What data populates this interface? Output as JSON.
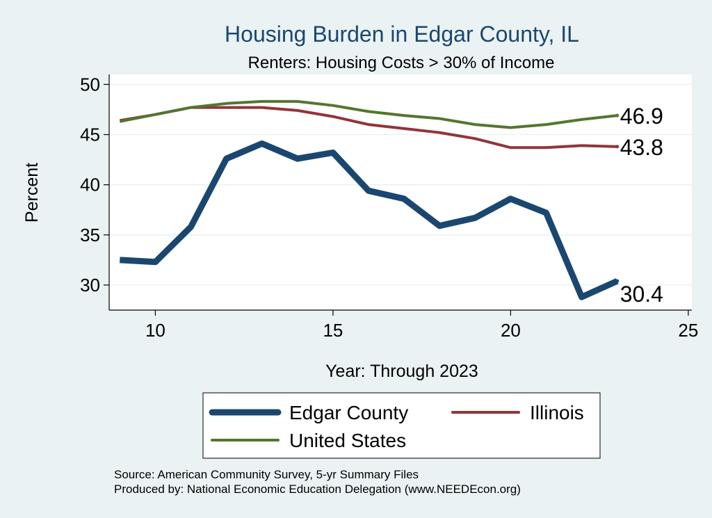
{
  "chart_data": {
    "type": "line",
    "title": "Housing Burden in Edgar County, IL",
    "subtitle": "Renters: Housing Costs > 30% of Income",
    "xlabel": "Year: Through 2023",
    "ylabel": "Percent",
    "xlim": [
      8.7,
      25.1
    ],
    "ylim": [
      27.5,
      51
    ],
    "xticks": [
      10,
      15,
      20,
      25
    ],
    "yticks": [
      30,
      35,
      40,
      45,
      50
    ],
    "grid": true,
    "legend_position": "bottom",
    "series": [
      {
        "name": "Edgar County",
        "color": "#1a476f",
        "line_width": 9,
        "end_label": "30.4",
        "x": [
          9,
          10,
          11,
          12,
          13,
          14,
          15,
          16,
          17,
          18,
          19,
          20,
          21,
          22,
          23
        ],
        "y": [
          32.5,
          32.3,
          35.8,
          42.6,
          44.1,
          42.6,
          43.2,
          39.4,
          38.6,
          35.9,
          36.7,
          38.6,
          37.2,
          28.8,
          30.4
        ]
      },
      {
        "name": "Illinois",
        "color": "#90353b",
        "line_width": 4,
        "end_label": "43.8",
        "x": [
          9,
          10,
          11,
          12,
          13,
          14,
          15,
          16,
          17,
          18,
          19,
          20,
          21,
          22,
          23
        ],
        "y": [
          46.4,
          47.0,
          47.7,
          47.7,
          47.7,
          47.4,
          46.8,
          46.0,
          45.6,
          45.2,
          44.6,
          43.7,
          43.7,
          43.9,
          43.8
        ]
      },
      {
        "name": "United States",
        "color": "#55752f",
        "line_width": 4,
        "end_label": "46.9",
        "x": [
          9,
          10,
          11,
          12,
          13,
          14,
          15,
          16,
          17,
          18,
          19,
          20,
          21,
          22,
          23
        ],
        "y": [
          46.3,
          47.0,
          47.7,
          48.1,
          48.3,
          48.3,
          47.9,
          47.3,
          46.9,
          46.6,
          46.0,
          45.7,
          46.0,
          46.5,
          46.9
        ]
      }
    ],
    "notes": [
      "Source: American Community Survey, 5-yr Summary Files",
      "Produced by: National Economic Education Delegation (www.NEEDEcon.org)"
    ]
  }
}
